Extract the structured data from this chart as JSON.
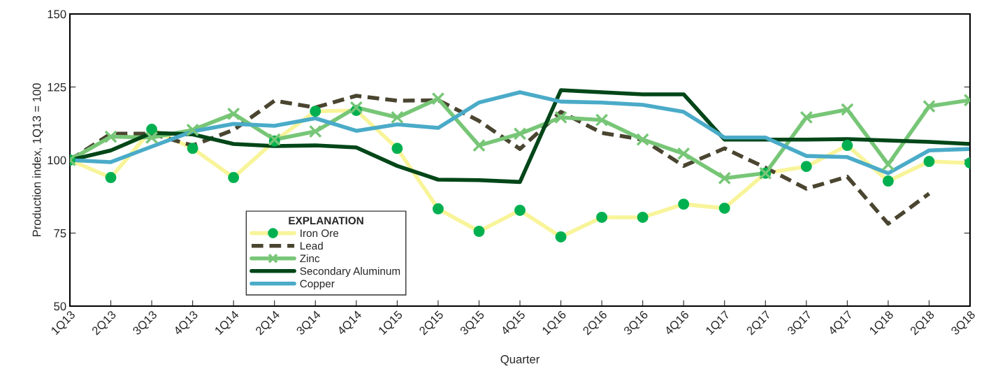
{
  "chart_data": {
    "type": "line",
    "xlabel": "Quarter",
    "ylabel": "Production index, 1Q13 = 100",
    "legend_title": "EXPLANATION",
    "legend": "bottom left",
    "grid": false,
    "categories": [
      "1Q13",
      "2Q13",
      "3Q13",
      "4Q13",
      "1Q14",
      "2Q14",
      "3Q14",
      "4Q14",
      "1Q15",
      "2Q15",
      "3Q15",
      "4Q15",
      "1Q16",
      "2Q16",
      "3Q16",
      "4Q16",
      "1Q17",
      "2Q17",
      "3Q17",
      "4Q17",
      "1Q18",
      "2Q18",
      "3Q18"
    ],
    "ylim": [
      50,
      150
    ],
    "yticks": [
      50,
      75,
      100,
      125,
      150
    ],
    "series": [
      {
        "name": "Iron Ore",
        "color": "#f8f49a",
        "marker": "circle",
        "line_style": "solid",
        "values": [
          100,
          94,
          110.5,
          104,
          94,
          106.5,
          116.7,
          117,
          104,
          83.3,
          75.6,
          82.8,
          73.7,
          80.4,
          80.4,
          84.9,
          83.5,
          95.5,
          97.8,
          105,
          92.8,
          99.5,
          99
        ]
      },
      {
        "name": "Lead",
        "color": "#4a4530",
        "marker": "none",
        "line_style": "dashed",
        "values": [
          100,
          109,
          109,
          105,
          110.3,
          120.3,
          118,
          122,
          120.3,
          120.5,
          113.4,
          103.8,
          116.5,
          109.3,
          107,
          98,
          104,
          97.4,
          90.2,
          94.3,
          78.2,
          88.5,
          null
        ]
      },
      {
        "name": "Zinc",
        "color": "#77c677",
        "marker": "cross",
        "line_style": "solid",
        "values": [
          100,
          108,
          107.7,
          110.3,
          115.8,
          107,
          109.8,
          118,
          114.6,
          121,
          105,
          109,
          114.6,
          113.7,
          107,
          102.2,
          93.8,
          95.5,
          114.6,
          117.3,
          98.5,
          118.4,
          120.5
        ]
      },
      {
        "name": "Secondary Aluminum",
        "color": "#004618",
        "marker": "none",
        "line_style": "solid",
        "values": [
          100,
          103.3,
          109.3,
          108.8,
          105.5,
          104.8,
          105,
          104.3,
          98,
          93.3,
          93.1,
          92.5,
          123.9,
          123.2,
          122.5,
          122.5,
          107,
          107,
          107,
          107.2,
          106.7,
          106.2,
          105.5
        ]
      },
      {
        "name": "Copper",
        "color": "#4aabc8",
        "marker": "none",
        "line_style": "solid",
        "values": [
          100,
          99.3,
          104.6,
          109.8,
          112.4,
          111.7,
          114.3,
          110,
          112.2,
          111,
          119.7,
          123.2,
          120,
          119.7,
          118.9,
          116.5,
          107.7,
          107.7,
          101.4,
          101,
          95.5,
          103.3,
          103.8
        ]
      }
    ]
  }
}
